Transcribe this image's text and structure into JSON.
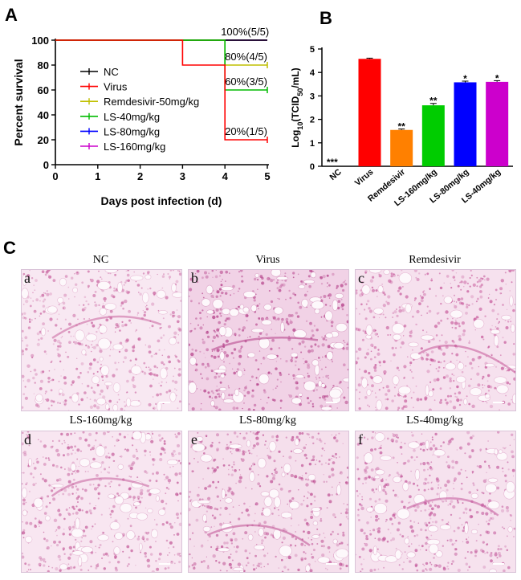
{
  "panel_letters": {
    "a": "A",
    "b": "B",
    "c": "C"
  },
  "chart_data": [
    {
      "type": "line",
      "step": true,
      "title": "",
      "xlabel": "Days post infection (d)",
      "ylabel": "Percent survival",
      "xlim": [
        0,
        5
      ],
      "ylim": [
        0,
        100
      ],
      "xticks": [
        0,
        1,
        2,
        3,
        4,
        5
      ],
      "yticks": [
        0,
        20,
        40,
        60,
        80,
        100
      ],
      "legend_position": "left",
      "series": [
        {
          "name": "NC",
          "color": "#000000",
          "x": [
            0,
            5
          ],
          "y": [
            100,
            100
          ]
        },
        {
          "name": "Virus",
          "color": "#ff0000",
          "x": [
            0,
            3,
            3,
            4,
            4,
            5
          ],
          "y": [
            100,
            100,
            80,
            80,
            20,
            20
          ]
        },
        {
          "name": "Remdesivir-50mg/kg",
          "color": "#bfbf00",
          "x": [
            0,
            4,
            4,
            5
          ],
          "y": [
            100,
            100,
            80,
            80
          ]
        },
        {
          "name": "LS-40mg/kg",
          "color": "#00bb00",
          "x": [
            0,
            4,
            4,
            5
          ],
          "y": [
            100,
            100,
            60,
            60
          ]
        },
        {
          "name": "LS-80mg/kg",
          "color": "#0000ff",
          "x": [
            0,
            5
          ],
          "y": [
            100,
            100
          ]
        },
        {
          "name": "LS-160mg/kg",
          "color": "#cc00cc",
          "x": [
            0,
            5
          ],
          "y": [
            100,
            100
          ]
        }
      ],
      "annotations": [
        {
          "text": "100%(5/5)",
          "x": 4,
          "y": 100
        },
        {
          "text": "80%(4/5)",
          "x": 4,
          "y": 80
        },
        {
          "text": "60%(3/5)",
          "x": 4,
          "y": 60
        },
        {
          "text": "20%(1/5)",
          "x": 4,
          "y": 20
        }
      ]
    },
    {
      "type": "bar",
      "title": "",
      "xlabel": "",
      "ylabel": "Log10(TCID50/mL)",
      "ylabel_parts": {
        "pre": "Log",
        "sub1": "10",
        "mid": "(TCID",
        "sub2": "50",
        "post": "/mL)"
      },
      "ylim": [
        0,
        5
      ],
      "yticks": [
        0,
        1,
        2,
        3,
        4,
        5
      ],
      "categories": [
        "NC",
        "Virus",
        "Remdesivir",
        "LS-160mg/kg",
        "LS-80mg/kg",
        "LS-40mg/kg"
      ],
      "values": [
        0,
        4.58,
        1.55,
        2.6,
        3.58,
        3.6
      ],
      "errors": [
        0,
        0.03,
        0.04,
        0.08,
        0.05,
        0.05
      ],
      "colors": [
        "#ffffff",
        "#ff0000",
        "#ff8000",
        "#00cc00",
        "#0000ff",
        "#cc00cc"
      ],
      "significance": [
        "***",
        "",
        "**",
        "**",
        "*",
        "*"
      ]
    }
  ],
  "histology": [
    {
      "title": "NC",
      "label": "a",
      "bg": "#f8e8f2",
      "dot": "#c8609d"
    },
    {
      "title": "Virus",
      "label": "b",
      "bg": "#f1d2e6",
      "dot": "#b23a85"
    },
    {
      "title": "Remdesivir",
      "label": "c",
      "bg": "#f6e1ee",
      "dot": "#c55598"
    },
    {
      "title": "LS-160mg/kg",
      "label": "d",
      "bg": "#f8e6f1",
      "dot": "#c45c9a"
    },
    {
      "title": "LS-80mg/kg",
      "label": "e",
      "bg": "#f5dfec",
      "dot": "#bd4c91"
    },
    {
      "title": "LS-40mg/kg",
      "label": "f",
      "bg": "#f6e2ee",
      "dot": "#c2569a"
    }
  ]
}
